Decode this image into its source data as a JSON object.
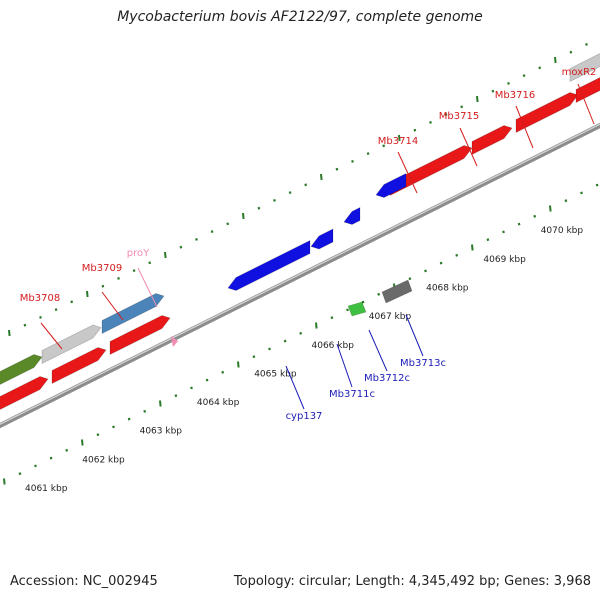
{
  "title": "Mycobacterium bovis AF2122/97, complete genome",
  "footer": {
    "accession": "Accession: NC_002945",
    "summary": "Topology: circular; Length: 4,345,492 bp; Genes: 3,968"
  },
  "colors": {
    "forward_label": "#d41c1c",
    "reverse_label": "#1c1cb8",
    "pseudo_label": "#f08cb4",
    "tick": "#2a7a2a",
    "backbone": "#8c8c8c",
    "red_gene": "#e81818",
    "blue_gene": "#1010e0",
    "gray_gene": "#c8c8c8",
    "steel_gene": "#4a84b8",
    "olive_gene": "#5a8a28",
    "green_gene": "#40c040",
    "dark_gray_gene": "#6a6a6a"
  },
  "scale_labels": [
    "4061 kbp",
    "4062 kbp",
    "4063 kbp",
    "4064 kbp",
    "4065 kbp",
    "4066 kbp",
    "4067 kbp",
    "4068 kbp",
    "4069 kbp",
    "4070 kbp"
  ],
  "genes": [
    {
      "id": "f-red-1",
      "strand": "forward",
      "color": "red_gene",
      "label": ""
    },
    {
      "id": "f-red-2",
      "strand": "forward",
      "color": "red_gene",
      "label": ""
    },
    {
      "id": "f-red-3",
      "strand": "forward",
      "color": "red_gene",
      "label": ""
    },
    {
      "id": "f-olive",
      "strand": "forward",
      "color": "olive_gene",
      "label": ""
    },
    {
      "id": "f-gray-1",
      "strand": "forward",
      "color": "gray_gene",
      "label": "Mb3708"
    },
    {
      "id": "f-steel",
      "strand": "forward",
      "color": "steel_gene",
      "label": "Mb3709"
    },
    {
      "id": "f-proY",
      "strand": "forward",
      "color": "pseudo_label",
      "label": "proY"
    },
    {
      "id": "f-red-4",
      "strand": "forward",
      "color": "red_gene",
      "label": "Mb3714"
    },
    {
      "id": "f-red-5",
      "strand": "forward",
      "color": "red_gene",
      "label": "Mb3715"
    },
    {
      "id": "f-red-6",
      "strand": "forward",
      "color": "red_gene",
      "label": "Mb3716"
    },
    {
      "id": "f-gray-2",
      "strand": "forward",
      "color": "gray_gene",
      "label": "moxR2"
    },
    {
      "id": "f-red-7",
      "strand": "forward",
      "color": "red_gene",
      "label": ""
    },
    {
      "id": "r-cyp137",
      "strand": "reverse",
      "color": "blue_gene",
      "label": "cyp137"
    },
    {
      "id": "r-3711c",
      "strand": "reverse",
      "color": "blue_gene",
      "label": "Mb3711c"
    },
    {
      "id": "r-3712c",
      "strand": "reverse",
      "color": "blue_gene",
      "label": "Mb3712c"
    },
    {
      "id": "r-3713c",
      "strand": "reverse",
      "color": "blue_gene",
      "label": "Mb3713c"
    },
    {
      "id": "r-green",
      "strand": "reverse",
      "color": "green_gene",
      "label": ""
    },
    {
      "id": "r-dgray",
      "strand": "reverse",
      "color": "dark_gray_gene",
      "label": ""
    }
  ]
}
